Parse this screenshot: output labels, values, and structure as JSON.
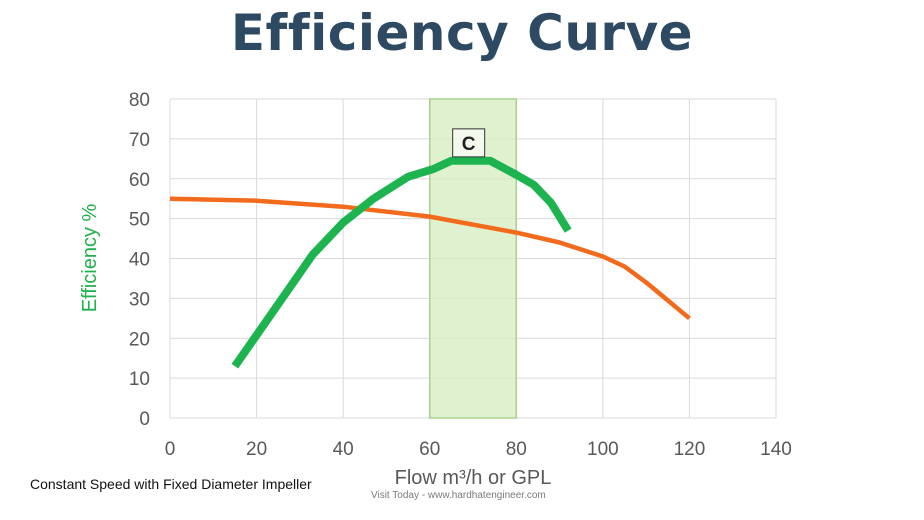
{
  "chart_data": {
    "type": "line",
    "title": "Efficiency Curve",
    "xlabel": "Flow m³/h or GPL",
    "ylabel": "Efficiency %",
    "xlim": [
      0,
      140
    ],
    "ylim": [
      0,
      80
    ],
    "xticks": [
      0,
      20,
      40,
      60,
      80,
      100,
      120,
      140
    ],
    "yticks": [
      0,
      10,
      20,
      30,
      40,
      50,
      60,
      70,
      80
    ],
    "grid": true,
    "series": [
      {
        "color": "#1db450",
        "points": [
          [
            15,
            13
          ],
          [
            24,
            27
          ],
          [
            33,
            41
          ],
          [
            40,
            49
          ],
          [
            47,
            55
          ],
          [
            55,
            60.5
          ],
          [
            61,
            62.5
          ],
          [
            65,
            64.5
          ],
          [
            74,
            64.5
          ],
          [
            80,
            61
          ],
          [
            84,
            58.5
          ],
          [
            88,
            54
          ],
          [
            92,
            47
          ]
        ]
      },
      {
        "color": "#f26b1d",
        "points": [
          [
            0,
            55
          ],
          [
            20,
            54.5
          ],
          [
            40,
            53
          ],
          [
            60,
            50.5
          ],
          [
            80,
            46.5
          ],
          [
            90,
            44
          ],
          [
            100,
            40.5
          ],
          [
            105,
            38
          ],
          [
            110,
            34
          ],
          [
            115,
            29.5
          ],
          [
            120,
            25
          ]
        ]
      }
    ],
    "highlight_band": {
      "x": [
        60,
        80
      ],
      "color": "#d6ecbf",
      "border": "#a9d18e"
    },
    "annotation": {
      "label": "C",
      "x": 69,
      "y": 69
    }
  },
  "footer": {
    "note": "Constant Speed with Fixed Diameter Impeller",
    "credit": "Visit Today - www.hardhatengineer.com"
  }
}
